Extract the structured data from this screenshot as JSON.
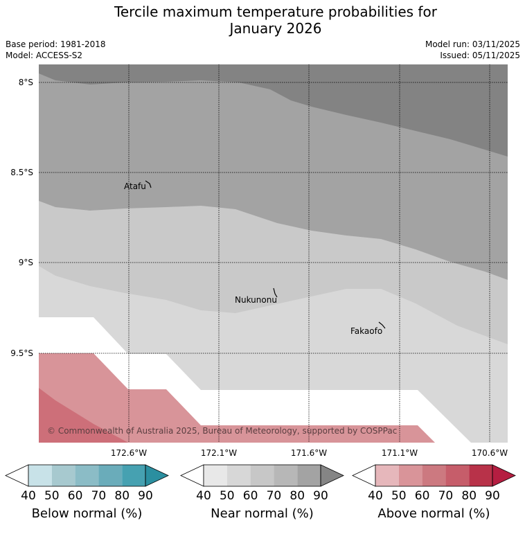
{
  "title": {
    "line1": "Tercile maximum temperature probabilities for",
    "line2": "January 2026"
  },
  "meta": {
    "base_period": "Base period: 1981-2018",
    "model": "Model: ACCESS-S2",
    "model_run": "Model run: 03/11/2025",
    "issued": "Issued: 05/11/2025"
  },
  "axes": {
    "lat_labels": [
      "8°S",
      "8.5°S",
      "9°S",
      "9.5°S"
    ],
    "lon_labels": [
      "172.6°W",
      "172.1°W",
      "171.6°W",
      "171.1°W",
      "170.6°W"
    ]
  },
  "places": [
    {
      "name": "Atafu"
    },
    {
      "name": "Nukunonu"
    },
    {
      "name": "Fakaofo"
    }
  ],
  "copyright": "© Commonwealth of Australia 2025, Bureau of Meteorology, supported by COSPPac",
  "colorbars": [
    {
      "title": "Below normal (%)",
      "ticks": [
        "40",
        "50",
        "60",
        "70",
        "80",
        "90"
      ],
      "colors": [
        "#ffffff",
        "#c8e2e8",
        "#a7c9cf",
        "#8bbcc6",
        "#6aacba",
        "#46a1b1",
        "#2b8fa0"
      ]
    },
    {
      "title": "Near normal (%)",
      "ticks": [
        "40",
        "50",
        "60",
        "70",
        "80",
        "90"
      ],
      "colors": [
        "#ffffff",
        "#e8e8e8",
        "#d7d7d7",
        "#c7c7c7",
        "#b7b7b7",
        "#a3a3a3",
        "#858585"
      ]
    },
    {
      "title": "Above normal (%)",
      "ticks": [
        "40",
        "50",
        "60",
        "70",
        "80",
        "90"
      ],
      "colors": [
        "#ffffff",
        "#e6b7bb",
        "#d99499",
        "#cc7980",
        "#c65d6a",
        "#b83249",
        "#b51e41"
      ]
    }
  ],
  "legend_colors": {
    "near_30_40": "#d8d8d8",
    "near_40_50": "#c9c9c9",
    "near_50_60": "#a3a3a3",
    "near_60_70": "#838383",
    "above_40_50": "#d89499",
    "above_50_60": "#cd6f79",
    "no_data": "#ffffff"
  }
}
